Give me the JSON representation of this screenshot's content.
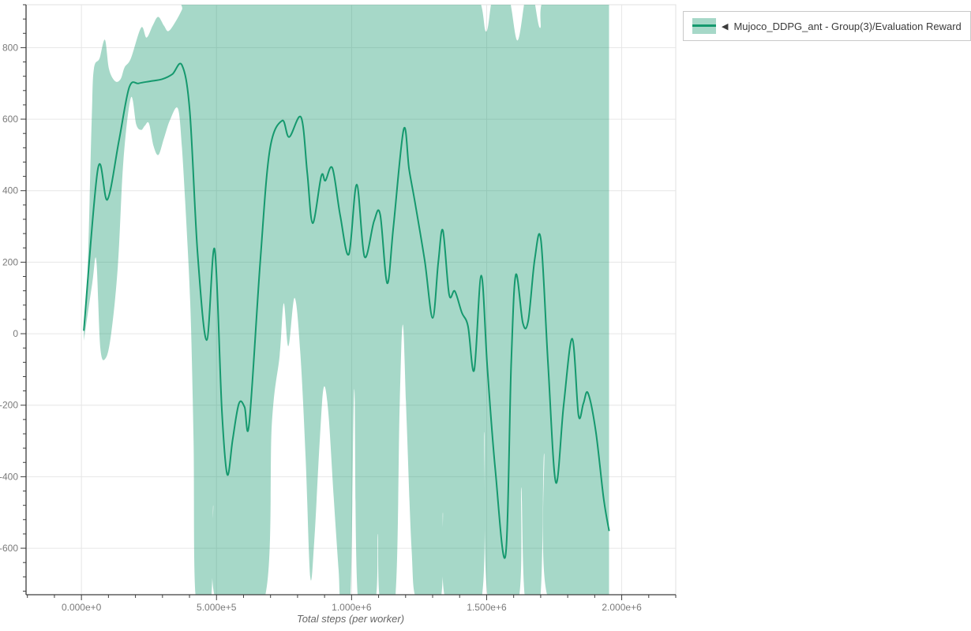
{
  "legend": {
    "collapse_marker": "◀",
    "series_label": "Mujoco_DDPG_ant - Group(3)/Evaluation Reward"
  },
  "colors": {
    "line": "#15996e",
    "band": "rgba(21,153,110,0.38)",
    "band_solid": "#a6d8c8",
    "grid": "#e6e6e6",
    "plot_border": "#e0e0e0",
    "axis": "#3d3d3d",
    "tick_label": "#7a7a7a",
    "axis_title": "#666666",
    "background": "#ffffff"
  },
  "chart_data": {
    "type": "line",
    "title": "",
    "xlabel": "Total steps (per worker)",
    "ylabel": "",
    "grid": true,
    "legend_position": "top-right",
    "xlim": [
      -205000,
      2200000
    ],
    "ylim": [
      -730,
      920
    ],
    "x_ticks": [
      {
        "v": 0,
        "label": "0.000e+0"
      },
      {
        "v": 500000,
        "label": "5.000e+5"
      },
      {
        "v": 1000000,
        "label": "1.000e+6"
      },
      {
        "v": 1500000,
        "label": "1.500e+6"
      },
      {
        "v": 2000000,
        "label": "2.000e+6"
      }
    ],
    "y_ticks": [
      {
        "v": 800,
        "label": "800"
      },
      {
        "v": 600,
        "label": "600"
      },
      {
        "v": 400,
        "label": "400"
      },
      {
        "v": 200,
        "label": "200"
      },
      {
        "v": 0,
        "label": "0"
      },
      {
        "v": -200,
        "label": "-200"
      },
      {
        "v": -400,
        "label": "-400"
      },
      {
        "v": -600,
        "label": "-600"
      }
    ],
    "x_minor_step": 100000,
    "y_minor_step": 40,
    "series": [
      {
        "name": "Mujoco_DDPG_ant - Group(3)/Evaluation Reward",
        "aggregation": "mean of 3 runs with min-max band",
        "mean": [
          [
            9000,
            10
          ],
          [
            61000,
            461
          ],
          [
            96000,
            375
          ],
          [
            139000,
            540
          ],
          [
            177000,
            689
          ],
          [
            212000,
            700
          ],
          [
            255000,
            706
          ],
          [
            299000,
            712
          ],
          [
            337000,
            726
          ],
          [
            372000,
            751
          ],
          [
            401000,
            622
          ],
          [
            430000,
            225
          ],
          [
            464000,
            -18
          ],
          [
            493000,
            236
          ],
          [
            520000,
            -217
          ],
          [
            540000,
            -394
          ],
          [
            560000,
            -295
          ],
          [
            583000,
            -195
          ],
          [
            604000,
            -205
          ],
          [
            621000,
            -250
          ],
          [
            662000,
            203
          ],
          [
            697000,
            513
          ],
          [
            743000,
            596
          ],
          [
            769000,
            550
          ],
          [
            813000,
            605
          ],
          [
            836000,
            450
          ],
          [
            856000,
            309
          ],
          [
            888000,
            441
          ],
          [
            903000,
            428
          ],
          [
            929000,
            463
          ],
          [
            958000,
            330
          ],
          [
            990000,
            222
          ],
          [
            1019000,
            417
          ],
          [
            1048000,
            215
          ],
          [
            1083000,
            315
          ],
          [
            1106000,
            333
          ],
          [
            1132000,
            141
          ],
          [
            1155000,
            300
          ],
          [
            1193000,
            572
          ],
          [
            1213000,
            460
          ],
          [
            1236000,
            362
          ],
          [
            1271000,
            203
          ],
          [
            1300000,
            44
          ],
          [
            1321000,
            200
          ],
          [
            1338000,
            289
          ],
          [
            1361000,
            110
          ],
          [
            1382000,
            119
          ],
          [
            1408000,
            59
          ],
          [
            1431000,
            21
          ],
          [
            1454000,
            -102
          ],
          [
            1480000,
            163
          ],
          [
            1503000,
            -100
          ],
          [
            1532000,
            -380
          ],
          [
            1570000,
            -620
          ],
          [
            1591000,
            -80
          ],
          [
            1608000,
            165
          ],
          [
            1634000,
            30
          ],
          [
            1654000,
            37
          ],
          [
            1678000,
            209
          ],
          [
            1701000,
            262
          ],
          [
            1727000,
            -80
          ],
          [
            1756000,
            -416
          ],
          [
            1785000,
            -200
          ],
          [
            1817000,
            -14
          ],
          [
            1840000,
            -228
          ],
          [
            1858000,
            -195
          ],
          [
            1875000,
            -166
          ],
          [
            1904000,
            -273
          ],
          [
            1933000,
            -460
          ],
          [
            1953000,
            -550
          ]
        ],
        "band_upper": [
          [
            9000,
            30
          ],
          [
            23000,
            180
          ],
          [
            38000,
            600
          ],
          [
            46000,
            740
          ],
          [
            67000,
            770
          ],
          [
            87000,
            822
          ],
          [
            102000,
            740
          ],
          [
            125000,
            706
          ],
          [
            145000,
            712
          ],
          [
            160000,
            745
          ],
          [
            183000,
            770
          ],
          [
            221000,
            856
          ],
          [
            241000,
            828
          ],
          [
            264000,
            862
          ],
          [
            284000,
            886
          ],
          [
            305000,
            862
          ],
          [
            322000,
            846
          ],
          [
            348000,
            872
          ],
          [
            372000,
            906
          ],
          [
            395000,
            945
          ],
          [
            700000,
            945
          ],
          [
            1000000,
            945
          ],
          [
            1300000,
            945
          ],
          [
            1460000,
            945
          ],
          [
            1498000,
            845
          ],
          [
            1525000,
            945
          ],
          [
            1580000,
            945
          ],
          [
            1614000,
            820
          ],
          [
            1645000,
            945
          ],
          [
            1672000,
            945
          ],
          [
            1698000,
            855
          ],
          [
            1725000,
            945
          ],
          [
            1953000,
            945
          ]
        ],
        "band_lower": [
          [
            9000,
            -20
          ],
          [
            40000,
            140
          ],
          [
            55000,
            205
          ],
          [
            70000,
            -40
          ],
          [
            90000,
            -68
          ],
          [
            110000,
            0
          ],
          [
            135000,
            190
          ],
          [
            155000,
            480
          ],
          [
            183000,
            660
          ],
          [
            203000,
            585
          ],
          [
            221000,
            570
          ],
          [
            235000,
            582
          ],
          [
            250000,
            588
          ],
          [
            267000,
            525
          ],
          [
            285000,
            500
          ],
          [
            305000,
            545
          ],
          [
            328000,
            598
          ],
          [
            357000,
            630
          ],
          [
            372000,
            520
          ],
          [
            389000,
            300
          ],
          [
            404000,
            60
          ],
          [
            415000,
            -300
          ],
          [
            424000,
            -745
          ],
          [
            479000,
            -745
          ],
          [
            488000,
            -480
          ],
          [
            499000,
            -745
          ],
          [
            676000,
            -745
          ],
          [
            705000,
            -250
          ],
          [
            734000,
            -60
          ],
          [
            749000,
            85
          ],
          [
            766000,
            -35
          ],
          [
            789000,
            100
          ],
          [
            810000,
            -50
          ],
          [
            830000,
            -350
          ],
          [
            847000,
            -680
          ],
          [
            862000,
            -580
          ],
          [
            882000,
            -300
          ],
          [
            897000,
            -150
          ],
          [
            914000,
            -220
          ],
          [
            934000,
            -460
          ],
          [
            952000,
            -660
          ],
          [
            960000,
            -745
          ],
          [
            995000,
            -745
          ],
          [
            1010000,
            -155
          ],
          [
            1024000,
            -745
          ],
          [
            1088000,
            -745
          ],
          [
            1097000,
            -560
          ],
          [
            1106000,
            -745
          ],
          [
            1161000,
            -745
          ],
          [
            1178000,
            -200
          ],
          [
            1190000,
            25
          ],
          [
            1204000,
            -250
          ],
          [
            1222000,
            -600
          ],
          [
            1242000,
            -745
          ],
          [
            1329000,
            -745
          ],
          [
            1338000,
            -500
          ],
          [
            1349000,
            -745
          ],
          [
            1480000,
            -745
          ],
          [
            1491000,
            -275
          ],
          [
            1506000,
            -745
          ],
          [
            1617000,
            -745
          ],
          [
            1628000,
            -430
          ],
          [
            1643000,
            -745
          ],
          [
            1698000,
            -745
          ],
          [
            1713000,
            -335
          ],
          [
            1730000,
            -745
          ],
          [
            1953000,
            -745
          ]
        ]
      }
    ]
  }
}
